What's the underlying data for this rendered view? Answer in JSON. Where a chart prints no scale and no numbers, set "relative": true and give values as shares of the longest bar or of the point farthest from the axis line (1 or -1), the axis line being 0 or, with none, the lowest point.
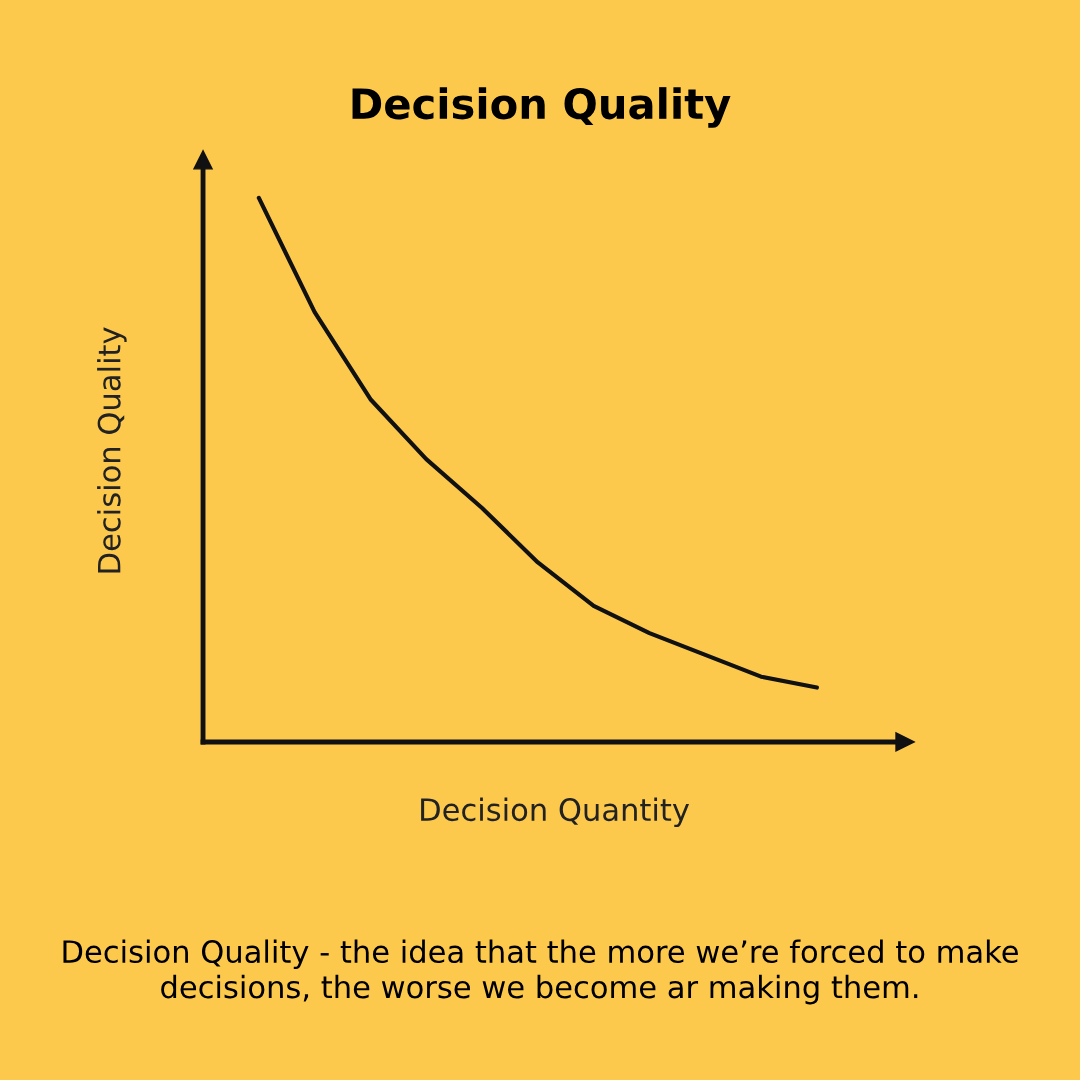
{
  "chart_data": {
    "type": "line",
    "title": "Decision Quality",
    "xlabel": "Decision Quantity",
    "ylabel": "Decision Quality",
    "relative": true,
    "categories": [
      null,
      null,
      null,
      null,
      null,
      null,
      null,
      null,
      null,
      null,
      null,
      null
    ],
    "series": [
      {
        "color": "#111111",
        "values": [
          null,
          1.0,
          0.79,
          0.63,
          0.52,
          0.43,
          0.33,
          0.25,
          0.2,
          0.16,
          0.12,
          0.1
        ]
      }
    ],
    "annotations": [
      "Decision Quality - the idea that the more we’re forced to make decisions, the worse we become ar making them."
    ],
    "grid": false,
    "legend": false,
    "tick_labels": false
  }
}
